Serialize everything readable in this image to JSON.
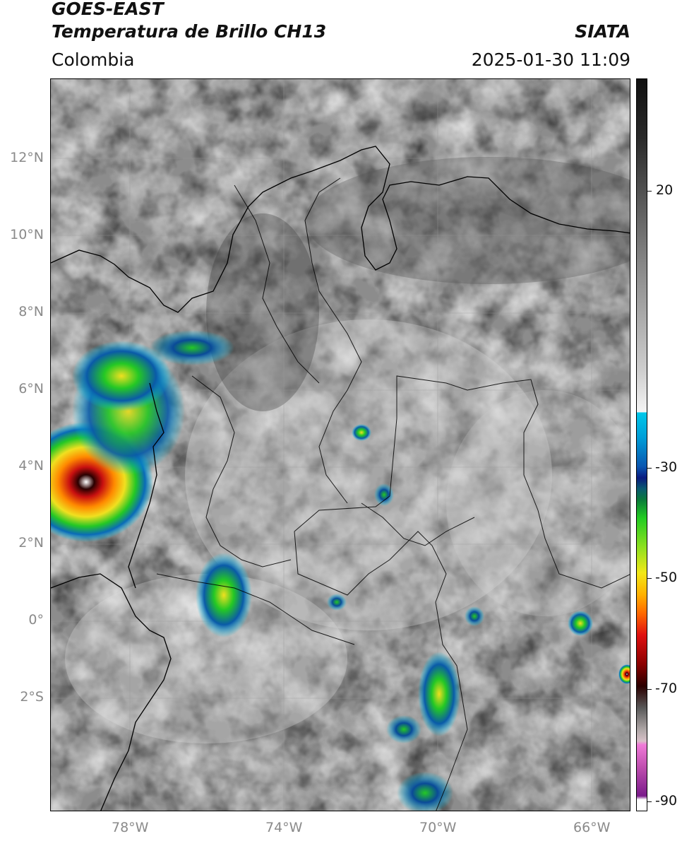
{
  "header": {
    "satellite": "GOES-EAST",
    "product": "Temperatura de Brillo CH13",
    "region": "Colombia",
    "agency": "SIATA",
    "datetime": "2025-01-30 11:09"
  },
  "axes": {
    "lat_labels": [
      "12°N",
      "10°N",
      "8°N",
      "6°N",
      "4°N",
      "2°N",
      "0°",
      "2°S"
    ],
    "lon_labels": [
      "78°W",
      "74°W",
      "70°W",
      "66°W"
    ]
  },
  "colorbar": {
    "ticks": [
      "20",
      "-30",
      "-50",
      "-70",
      "-90"
    ],
    "colors": {
      "gray_top": "#111111",
      "gray_bottom": "#f4f4f4",
      "cyan": "#00c8ea",
      "blue": "#0a2a9a",
      "green": "#22cc22",
      "yellow": "#f2e818",
      "orange": "#ff8800",
      "red": "#d81010",
      "dark_red": "#4a0000",
      "magenta": "#e070c8",
      "purple": "#7a1a8a"
    }
  }
}
